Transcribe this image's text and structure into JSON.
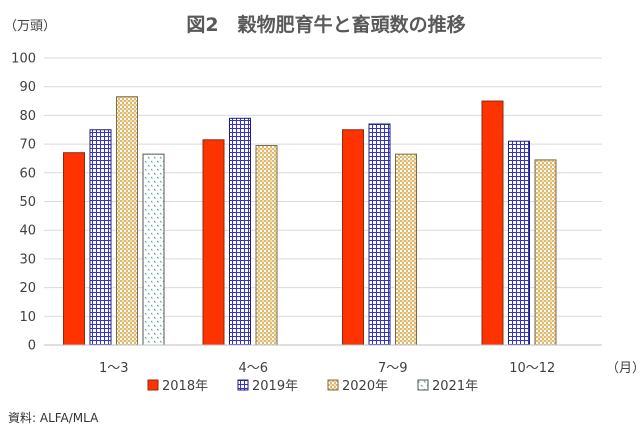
{
  "chart_data": {
    "type": "bar",
    "title": "図2　穀物肥育牛と畜頭数の推移",
    "y_unit": "（万頭）",
    "x_unit": "（月）",
    "categories": [
      "1～3",
      "4～6",
      "7～9",
      "10～12"
    ],
    "ylim": [
      0,
      100
    ],
    "y_ticks": [
      0,
      10,
      20,
      30,
      40,
      50,
      60,
      70,
      80,
      90,
      100
    ],
    "grid": true,
    "legend_position": "bottom",
    "series": [
      {
        "name": "2018年",
        "color": "#ff3300",
        "pattern": "solid",
        "values": [
          67,
          71.5,
          75,
          85
        ]
      },
      {
        "name": "2019年",
        "color": "#3333cc",
        "pattern": "grid",
        "values": [
          75,
          79,
          77,
          71
        ]
      },
      {
        "name": "2020年",
        "color": "#e6c88a",
        "pattern": "dots",
        "values": [
          86.5,
          69.5,
          66.5,
          64.5
        ]
      },
      {
        "name": "2021年",
        "color": "#4aa896",
        "pattern": "sparse",
        "values": [
          66.5,
          null,
          null,
          null
        ]
      }
    ]
  },
  "source": "資料: ALFA/MLA"
}
